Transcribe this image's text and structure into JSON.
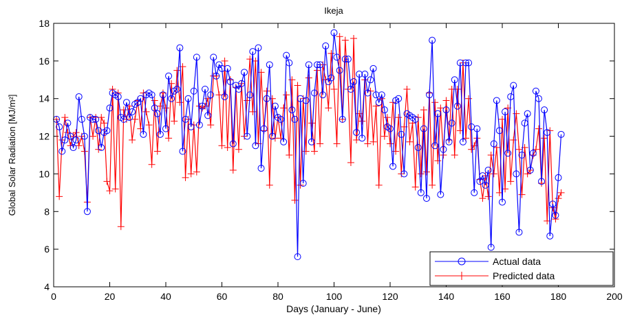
{
  "chart_data": {
    "type": "line",
    "title": "Ikeja",
    "xlabel": "Days (January - June)",
    "ylabel": "Global Solar Radiation [MJ/m²]",
    "xlim": [
      0,
      200
    ],
    "xticks": [
      0,
      20,
      40,
      60,
      80,
      100,
      120,
      140,
      160,
      180,
      200
    ],
    "ylim": [
      4,
      18
    ],
    "yticks": [
      4,
      6,
      8,
      10,
      12,
      14,
      16,
      18
    ],
    "grid": false,
    "legend": "lower right",
    "x": [
      1,
      2,
      3,
      4,
      5,
      6,
      7,
      8,
      9,
      10,
      11,
      12,
      13,
      14,
      15,
      16,
      17,
      18,
      19,
      20,
      21,
      22,
      23,
      24,
      25,
      26,
      27,
      28,
      29,
      30,
      31,
      32,
      33,
      34,
      35,
      36,
      37,
      38,
      39,
      40,
      41,
      42,
      43,
      44,
      45,
      46,
      47,
      48,
      49,
      50,
      51,
      52,
      53,
      54,
      55,
      56,
      57,
      58,
      59,
      60,
      61,
      62,
      63,
      64,
      65,
      66,
      67,
      68,
      69,
      70,
      71,
      72,
      73,
      74,
      75,
      76,
      77,
      78,
      79,
      80,
      81,
      82,
      83,
      84,
      85,
      86,
      87,
      88,
      89,
      90,
      91,
      92,
      93,
      94,
      95,
      96,
      97,
      98,
      99,
      100,
      101,
      102,
      103,
      104,
      105,
      106,
      107,
      108,
      109,
      110,
      111,
      112,
      113,
      114,
      115,
      116,
      117,
      118,
      119,
      120,
      121,
      122,
      123,
      124,
      125,
      126,
      127,
      128,
      129,
      130,
      131,
      132,
      133,
      134,
      135,
      136,
      137,
      138,
      139,
      140,
      141,
      142,
      143,
      144,
      145,
      146,
      147,
      148,
      149,
      150,
      151,
      152,
      153,
      154,
      155,
      156,
      157,
      158,
      159,
      160,
      161,
      162,
      163,
      164,
      165,
      166,
      167,
      168,
      169,
      170,
      171,
      172,
      173,
      174,
      175,
      176,
      177,
      178,
      179,
      180,
      181
    ],
    "series": [
      {
        "name": "Actual data",
        "color": "#0000ff",
        "marker": "circle",
        "values": [
          12.9,
          12.5,
          11.2,
          11.8,
          12.7,
          12,
          11.4,
          11.8,
          14.1,
          12.9,
          12,
          8.0,
          13,
          12.9,
          12.9,
          12.3,
          11.4,
          12.2,
          12.3,
          13.5,
          14.3,
          14.2,
          14.1,
          13,
          12.9,
          13.8,
          13,
          13.3,
          13.7,
          13.8,
          14,
          12.1,
          14.2,
          14.3,
          14.2,
          13.5,
          13.2,
          12.1,
          14.2,
          12.4,
          15.2,
          14,
          14.4,
          14.5,
          16.7,
          11.2,
          12.9,
          14,
          12.5,
          14.4,
          16.2,
          12.6,
          13.6,
          14.5,
          13.1,
          14.2,
          16.2,
          15.2,
          15.8,
          15.6,
          14.1,
          15.6,
          14.9,
          11.6,
          14.7,
          14.5,
          14.8,
          15.4,
          12,
          14.2,
          16.5,
          11.5,
          16.7,
          10.3,
          12.4,
          14,
          15.8,
          12,
          13.6,
          13,
          12.9,
          11.7,
          16.3,
          15.9,
          13.4,
          12.9,
          5.6,
          14,
          9.5,
          13.9,
          15.8,
          11.7,
          14.3,
          15.8,
          15.8,
          14.2,
          16.8,
          14.9,
          15.1,
          17.5,
          16.2,
          15.5,
          12.9,
          16.1,
          16.1,
          14.5,
          14.9,
          12.2,
          15.3,
          11.9,
          15.3,
          14.3,
          15,
          15.6,
          14.2,
          13.8,
          14.2,
          13.4,
          12.5,
          12.4,
          10.4,
          13.9,
          14,
          12.1,
          10,
          13.2,
          13.1,
          13,
          12.9,
          11.4,
          9,
          12.4,
          8.7,
          14.2,
          17.1,
          11.5,
          13.2,
          8.9,
          11.3,
          13.4,
          11.7,
          12.7,
          15,
          13.6,
          15.9,
          11.7,
          15.9,
          15.9,
          12.5,
          9,
          12.4,
          9.6,
          9.9,
          9.4,
          10.2,
          6.1,
          11.6,
          13.9,
          12.3,
          8.5,
          13.3,
          11.1,
          14.1,
          14.7,
          10,
          6.9,
          11,
          12.7,
          13.2,
          10.2,
          11.1,
          14.4,
          14,
          9.6,
          13.4,
          12.2,
          6.7,
          8.4,
          7.8,
          9.8,
          12.1
        ]
      },
      {
        "name": "Predicted data",
        "color": "#ff0000",
        "marker": "plus",
        "values": [
          12.9,
          8.8,
          11.8,
          13,
          12.2,
          11.5,
          12,
          12.2,
          11.5,
          12,
          11.2,
          8.5,
          13,
          12,
          13,
          11.3,
          13,
          12.7,
          9.6,
          9.1,
          14.5,
          9.2,
          14.3,
          7.2,
          13.4,
          12.9,
          13.6,
          11.8,
          12.9,
          13.9,
          12.4,
          14.3,
          13.3,
          12.6,
          10.5,
          13.9,
          11.2,
          13.6,
          14.3,
          13.5,
          11.9,
          14.8,
          12.8,
          15.5,
          13.8,
          15.7,
          9.8,
          12.9,
          10,
          12.6,
          10.1,
          13.6,
          13.5,
          13.6,
          14,
          12.6,
          15.2,
          15.2,
          14.2,
          11.5,
          16,
          11.4,
          15,
          10.2,
          14.6,
          11.3,
          14.8,
          12,
          13.9,
          16.1,
          13.3,
          16,
          11.6,
          15.4,
          12.3,
          14.4,
          9.4,
          14,
          11.9,
          13,
          11.9,
          13.5,
          14.2,
          11,
          15,
          8.6,
          14.7,
          9.4,
          14,
          11.2,
          15.1,
          12.7,
          11.2,
          15.5,
          11.6,
          15.8,
          15,
          13.5,
          16.4,
          14.5,
          11.6,
          17.3,
          12.9,
          17.1,
          14.5,
          10.6,
          17.2,
          11.8,
          13.2,
          12.8,
          15,
          11.6,
          14.4,
          11.7,
          13.6,
          9.4,
          14,
          12,
          13,
          11.6,
          13.8,
          11.2,
          13,
          10,
          12.5,
          14.5,
          11.7,
          12.7,
          9.3,
          13,
          10,
          13.4,
          10.1,
          14.3,
          9.4,
          13.8,
          10.7,
          13.5,
          11,
          13.9,
          11.8,
          14.5,
          11,
          14.5,
          12.3,
          15.9,
          11.9,
          14,
          11.3,
          11.5,
          11.9,
          9.7,
          8.7,
          9.9,
          8.8,
          11,
          10,
          11.4,
          9,
          12.9,
          9.2,
          13.5,
          9.6,
          11.8,
          13.2,
          11.3,
          8.9,
          11.4,
          10,
          10.2,
          11,
          11.3,
          12.4,
          9.5,
          11.9,
          7.5,
          12.3,
          8.2,
          7.6,
          8.7,
          9
        ]
      }
    ]
  }
}
